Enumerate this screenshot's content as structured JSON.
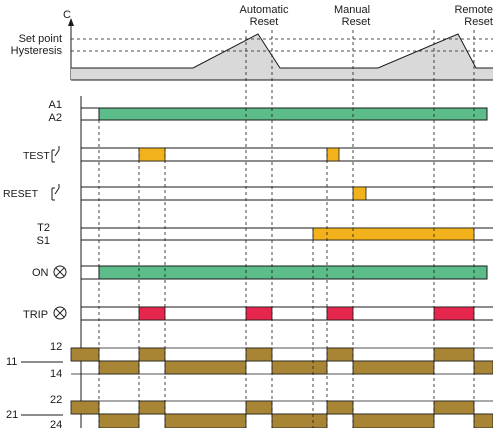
{
  "axis": {
    "label": "C"
  },
  "curve": {
    "set_point_label": "Set point",
    "hysteresis_label": "Hysteresis"
  },
  "events": [
    {
      "id": "auto",
      "line1": "Automatic",
      "line2": "Reset"
    },
    {
      "id": "manual",
      "line1": "Manual",
      "line2": "Reset"
    },
    {
      "id": "remote",
      "line1": "Remote",
      "line2": "Reset"
    }
  ],
  "rows": {
    "supply": {
      "line1": "A1",
      "line2": "A2"
    },
    "test": {
      "label": "TEST"
    },
    "reset": {
      "label": "RESET"
    },
    "remote_contact": {
      "line1": "T2",
      "line2": "S1"
    },
    "on": {
      "label": "ON"
    },
    "trip": {
      "label": "TRIP"
    },
    "contact_11": {
      "common": "11",
      "nc": "12",
      "no": "14"
    },
    "contact_21": {
      "common": "21",
      "nc": "22",
      "no": "24"
    }
  },
  "colors": {
    "green": "#5cbd8a",
    "orange": "#f2b21b",
    "red": "#e5264d",
    "brown": "#a88535",
    "curve_fill": "#d9d9d9",
    "grid": "#1a1a1a"
  }
}
